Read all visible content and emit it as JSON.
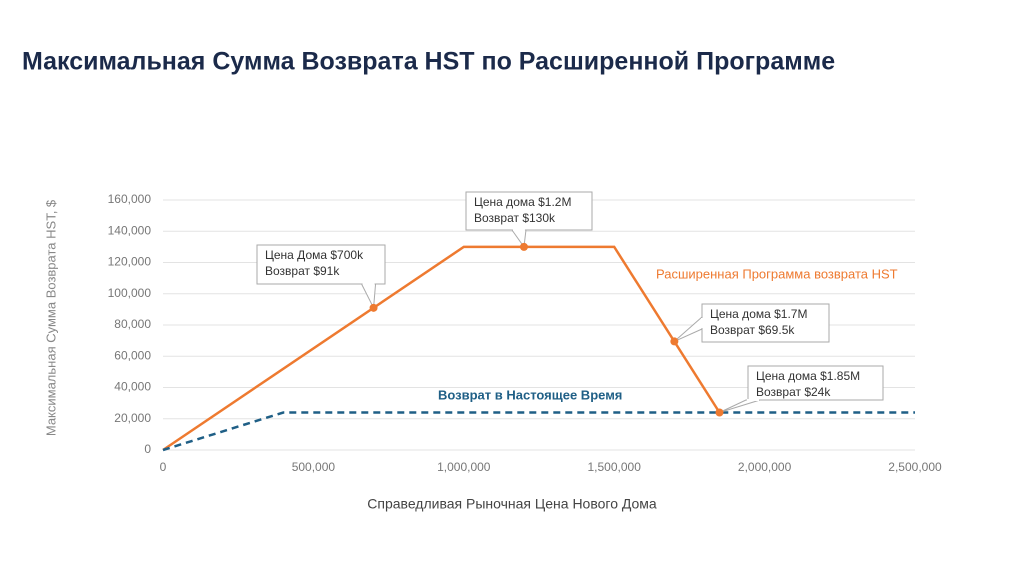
{
  "chart_data": {
    "type": "line",
    "title": "Максимальная Сумма Возврата HST по Расширенной Программе",
    "x_label": "Справедливая Рыночная Цена Нового Дома",
    "y_label": "Максимальная Сумма Возврата HST, $",
    "xlim": [
      0,
      2500000
    ],
    "xticks": [
      0,
      {
        "value": 500000,
        "label": "500,000"
      },
      {
        "value": 1000000,
        "label": "1,000,000"
      },
      {
        "value": 1500000,
        "label": "1,500,000"
      },
      {
        "value": 2000000,
        "label": "2,000,000"
      },
      {
        "value": 2500000,
        "label": "2,500,000"
      }
    ],
    "ylim": [
      0,
      160000
    ],
    "yticks": [
      0,
      {
        "value": 20000,
        "label": "20,000"
      },
      {
        "value": 40000,
        "label": "40,000"
      },
      {
        "value": 60000,
        "label": "60,000"
      },
      {
        "value": 80000,
        "label": "80,000"
      },
      {
        "value": 100000,
        "label": "100,000"
      },
      {
        "value": 120000,
        "label": "120,000"
      },
      {
        "value": 140000,
        "label": "140,000"
      },
      {
        "value": 160000,
        "label": "160,000"
      }
    ],
    "grid": true,
    "series": [
      {
        "name": "Расширенная Программа возврата HST",
        "color": "#ee7a30",
        "dashed": false,
        "x": [
          0,
          1000000,
          1500000,
          1850000
        ],
        "values": [
          0,
          130000,
          130000,
          24000
        ]
      },
      {
        "name": "Возврат в Настоящее Время",
        "color": "#1f5f86",
        "dashed": true,
        "x": [
          0,
          400000,
          2500000
        ],
        "values": [
          0,
          24000,
          24000
        ]
      }
    ],
    "highlights": {
      "color": "#ee7a30",
      "x": [
        700000,
        1200000,
        1700000,
        1850000
      ],
      "values": [
        91000,
        130000,
        69500,
        24000
      ],
      "labels": [
        [
          "Цена Дома $700k",
          "Возврат $91k"
        ],
        [
          "Цена дома $1.2M",
          "Возврат $130k"
        ],
        [
          "Цена дома $1.7M",
          "Возврат $69.5k"
        ],
        [
          "Цена дома $1.85M",
          "Возврат $24k"
        ]
      ]
    }
  }
}
